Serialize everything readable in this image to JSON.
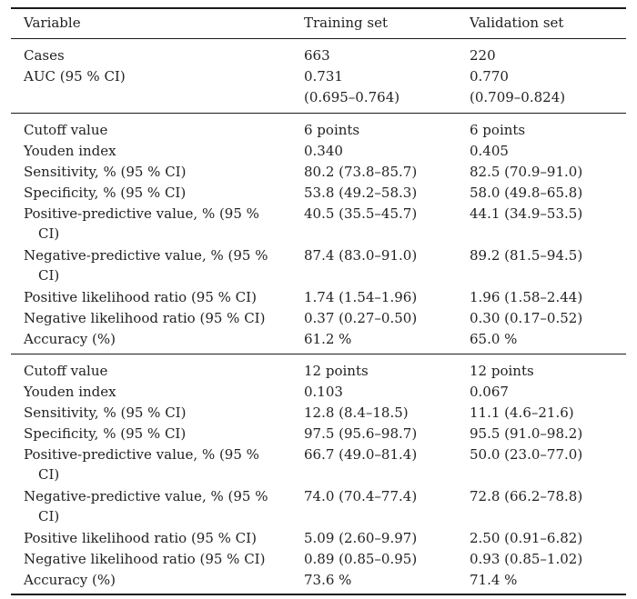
{
  "header": {
    "variable": "Variable",
    "training": "Training set",
    "validation": "Validation set"
  },
  "summary": [
    {
      "label": "Cases",
      "training": "663",
      "validation": "220"
    },
    {
      "label": "AUC (95 % CI)",
      "training": "0.731",
      "validation": "0.770"
    },
    {
      "label": "",
      "training": "(0.695–0.764)",
      "validation": "(0.709–0.824)"
    }
  ],
  "section1": [
    {
      "label": "Cutoff value",
      "training": "6 points",
      "validation": "6 points"
    },
    {
      "label": "Youden index",
      "training": "0.340",
      "validation": "0.405"
    },
    {
      "label": "Sensitivity, % (95 % CI)",
      "training": "80.2 (73.8–85.7)",
      "validation": "82.5 (70.9–91.0)"
    },
    {
      "label": "Specificity, % (95 % CI)",
      "training": "53.8 (49.2–58.3)",
      "validation": "58.0 (49.8–65.8)"
    },
    {
      "label": "Positive-predictive value, % (95 %",
      "label_cont": "CI)",
      "training": "40.5 (35.5–45.7)",
      "validation": "44.1 (34.9–53.5)"
    },
    {
      "label": "Negative-predictive value, % (95 %",
      "label_cont": "CI)",
      "training": "87.4 (83.0–91.0)",
      "validation": "89.2 (81.5–94.5)"
    },
    {
      "label": "Positive likelihood ratio (95 % CI)",
      "training": "1.74 (1.54–1.96)",
      "validation": "1.96 (1.58–2.44)"
    },
    {
      "label": "Negative likelihood ratio (95 % CI)",
      "training": "0.37 (0.27–0.50)",
      "validation": "0.30 (0.17–0.52)"
    },
    {
      "label": "Accuracy (%)",
      "training": "61.2 %",
      "validation": "65.0 %"
    }
  ],
  "section2": [
    {
      "label": "Cutoff value",
      "training": "12 points",
      "validation": "12 points"
    },
    {
      "label": "Youden index",
      "training": "0.103",
      "validation": "0.067"
    },
    {
      "label": "Sensitivity, % (95 % CI)",
      "training": "12.8 (8.4–18.5)",
      "validation": "11.1 (4.6–21.6)"
    },
    {
      "label": "Specificity, % (95 % CI)",
      "training": "97.5 (95.6–98.7)",
      "validation": "95.5 (91.0–98.2)"
    },
    {
      "label": "Positive-predictive value, % (95 %",
      "label_cont": "CI)",
      "training": "66.7 (49.0–81.4)",
      "validation": "50.0 (23.0–77.0)"
    },
    {
      "label": "Negative-predictive value, % (95 %",
      "label_cont": "CI)",
      "training": "74.0 (70.4–77.4)",
      "validation": "72.8 (66.2–78.8)"
    },
    {
      "label": "Positive likelihood ratio (95 % CI)",
      "training": "5.09 (2.60–9.97)",
      "validation": "2.50 (0.91–6.82)"
    },
    {
      "label": "Negative likelihood ratio (95 % CI)",
      "training": "0.89 (0.85–0.95)",
      "validation": "0.93 (0.85–1.02)"
    },
    {
      "label": "Accuracy (%)",
      "training": "73.6 %",
      "validation": "71.4 %"
    }
  ]
}
